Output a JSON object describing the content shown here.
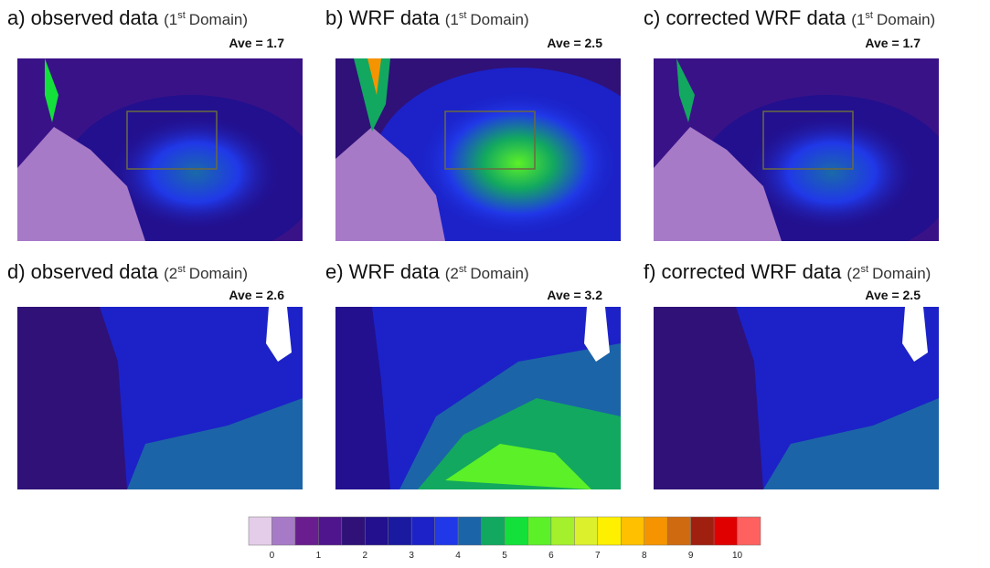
{
  "panels": [
    {
      "title": "a) observed data",
      "domain_open": "(1",
      "domain_sup": "st",
      "domain_close": "Domain)",
      "ave": "Ave = 1.7"
    },
    {
      "title": "b) WRF data",
      "domain_open": "(1",
      "domain_sup": "st",
      "domain_close": "Domain)",
      "ave": "Ave = 2.5"
    },
    {
      "title": "c) corrected WRF data",
      "domain_open": "(1",
      "domain_sup": "st",
      "domain_close": "Domain)",
      "ave": "Ave = 1.7"
    },
    {
      "title": "d) observed data",
      "domain_open": "(2",
      "domain_sup": "st",
      "domain_close": "Domain)",
      "ave": "Ave = 2.6"
    },
    {
      "title": "e) WRF data",
      "domain_open": "(2",
      "domain_sup": "st",
      "domain_close": "Domain)",
      "ave": "Ave = 3.2"
    },
    {
      "title": "f) corrected WRF data",
      "domain_open": "(2",
      "domain_sup": "st",
      "domain_close": "Domain)",
      "ave": "Ave = 2.5"
    }
  ],
  "colorbar": {
    "colors": [
      "#e3cde9",
      "#a77ac8",
      "#6a1d8e",
      "#4e158c",
      "#2f1178",
      "#22108e",
      "#1a1aa0",
      "#1c22c8",
      "#2038e8",
      "#1c64a8",
      "#12a860",
      "#14e03c",
      "#5cf028",
      "#a4f02c",
      "#dcf02c",
      "#fff000",
      "#ffc000",
      "#f59400",
      "#d06a10",
      "#a02010",
      "#e00000",
      "#ff6060"
    ],
    "ticks": [
      0,
      1,
      2,
      3,
      4,
      5,
      6,
      7,
      8,
      9,
      10
    ]
  }
}
